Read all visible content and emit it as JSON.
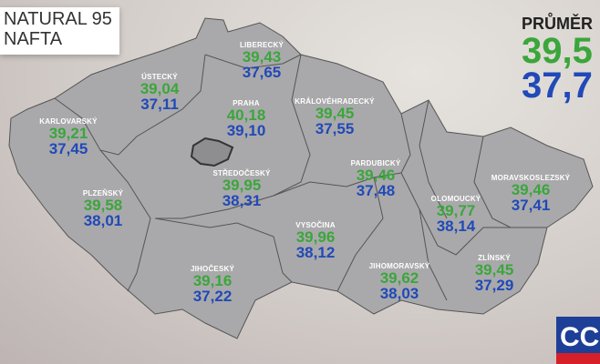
{
  "legend": {
    "line1": "NATURAL 95",
    "line2": "NAFTA"
  },
  "average": {
    "label": "PRŮMĚR",
    "natural95": "39,5",
    "nafta": "37,7"
  },
  "colors": {
    "natural95": "#3ba63b",
    "nafta": "#2149b8",
    "region_fill": "#a9a9ab"
  },
  "regions": [
    {
      "name": "LIBERECKÝ",
      "natural95": "39,43",
      "nafta": "37,65"
    },
    {
      "name": "ÚSTECKÝ",
      "natural95": "39,04",
      "nafta": "37,11"
    },
    {
      "name": "KARLOVARSKÝ",
      "natural95": "39,21",
      "nafta": "37,45"
    },
    {
      "name": "PRAHA",
      "natural95": "40,18",
      "nafta": "39,10"
    },
    {
      "name": "KRÁLOVÉHRADECKÝ",
      "natural95": "39,45",
      "nafta": "37,55"
    },
    {
      "name": "STŘEDOČESKÝ",
      "natural95": "39,95",
      "nafta": "38,31"
    },
    {
      "name": "PARDUBICKÝ",
      "natural95": "39,46",
      "nafta": "37,48"
    },
    {
      "name": "PLZEŇSKÝ",
      "natural95": "39,58",
      "nafta": "38,01"
    },
    {
      "name": "MORAVSKOSLEZSKÝ",
      "natural95": "39,46",
      "nafta": "37,41"
    },
    {
      "name": "OLOMOUCKÝ",
      "natural95": "39,77",
      "nafta": "38,14"
    },
    {
      "name": "VYSOČINA",
      "natural95": "39,96",
      "nafta": "38,12"
    },
    {
      "name": "JIHOČESKÝ",
      "natural95": "39,16",
      "nafta": "37,22"
    },
    {
      "name": "JIHOMORAVSKÝ",
      "natural95": "39,62",
      "nafta": "38,03"
    },
    {
      "name": "ZLÍNSKÝ",
      "natural95": "39,45",
      "nafta": "37,29"
    }
  ],
  "logo": {
    "text": "CC"
  }
}
